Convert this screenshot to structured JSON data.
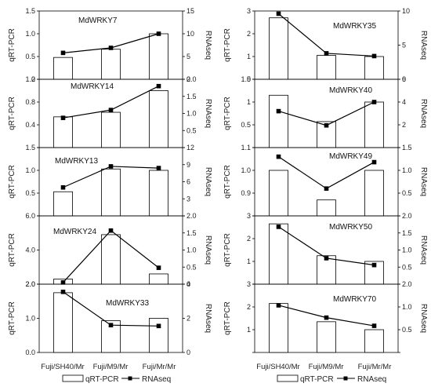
{
  "legend": {
    "bar_label": "qRT-PCR",
    "line_label": "RNAseq"
  },
  "colors": {
    "bar_fill": "#ffffff",
    "bar_stroke": "#000000",
    "line": "#000000",
    "marker": "#000000"
  },
  "chart_data": [
    {
      "type": "bar",
      "title": "MdWRKY7",
      "categories": [
        "Fuji/SH40/Mr",
        "Fuji/M9/Mr",
        "Fuji/Mr/Mr"
      ],
      "ylabel": "qRT-PCR",
      "y2label": "RNAseq",
      "ylim": [
        0,
        1.5
      ],
      "yticks": [
        "0",
        "0.5",
        "1.0",
        "1.5"
      ],
      "y2lim": [
        0,
        15
      ],
      "y2ticks": [
        "0",
        "5",
        "10",
        "15"
      ],
      "series": [
        {
          "name": "qRT-PCR",
          "axis": "left",
          "values": [
            0.48,
            0.66,
            1.0
          ]
        },
        {
          "name": "RNAseq",
          "axis": "right",
          "values": [
            5.8,
            6.9,
            10.0
          ]
        }
      ]
    },
    {
      "type": "bar",
      "title": "MdWRKY14",
      "categories": [
        "Fuji/SH40/Mr",
        "Fuji/M9/Mr",
        "Fuji/Mr/Mr"
      ],
      "ylabel": "qRT-PCR",
      "y2label": "RNAseq",
      "ylim": [
        0,
        1.2
      ],
      "yticks": [
        "",
        "0.4",
        "0.8",
        "1.2"
      ],
      "y2lim": [
        0,
        2.0
      ],
      "y2ticks": [
        "",
        "0.5",
        "1.0",
        "1.5",
        "2.0"
      ],
      "series": [
        {
          "name": "qRT-PCR",
          "axis": "left",
          "values": [
            0.54,
            0.62,
            1.0
          ]
        },
        {
          "name": "RNAseq",
          "axis": "right",
          "values": [
            0.87,
            1.1,
            1.8
          ]
        }
      ]
    },
    {
      "type": "bar",
      "title": "MdWRKY13",
      "categories": [
        "Fuji/SH40/Mr",
        "Fuji/M9/Mr",
        "Fuji/Mr/Mr"
      ],
      "ylabel": "qRT-PCR",
      "y2label": "RNAseq",
      "ylim": [
        0,
        1.5
      ],
      "yticks": [
        "",
        "0.5",
        "1.0",
        "1.5"
      ],
      "y2lim": [
        0,
        12
      ],
      "y2ticks": [
        "",
        "3",
        "6",
        "9",
        "12"
      ],
      "series": [
        {
          "name": "qRT-PCR",
          "axis": "left",
          "values": [
            0.53,
            1.03,
            1.0
          ]
        },
        {
          "name": "RNAseq",
          "axis": "right",
          "values": [
            5.0,
            8.7,
            8.4
          ]
        }
      ]
    },
    {
      "type": "bar",
      "title": "MdWRKY24",
      "categories": [
        "Fuji/SH40/Mr",
        "Fuji/M9/Mr",
        "Fuji/Mr/Mr"
      ],
      "ylabel": "qRT-PCR",
      "y2label": "RNAseq",
      "ylim": [
        2.0,
        6.0
      ],
      "yticks": [
        "2.0",
        "4.0",
        "6.0"
      ],
      "y2lim": [
        0,
        2.0
      ],
      "y2ticks": [
        "0",
        "0.5",
        "1.0",
        "1.5",
        "2.0"
      ],
      "series": [
        {
          "name": "qRT-PCR",
          "axis": "left",
          "values": [
            2.3,
            4.9,
            2.6
          ]
        },
        {
          "name": "RNAseq",
          "axis": "right",
          "values": [
            0.05,
            1.57,
            0.48
          ]
        }
      ]
    },
    {
      "type": "bar",
      "title": "MdWRKY33",
      "categories": [
        "Fuji/SH40/Mr",
        "Fuji/M9/Mr",
        "Fuji/Mr/Mr"
      ],
      "ylabel": "qRT-PCR",
      "y2label": "RNAseq",
      "ylim": [
        0,
        2.0
      ],
      "yticks": [
        "0.0",
        "1.0",
        "2.0"
      ],
      "y2lim": [
        0,
        4
      ],
      "y2ticks": [
        "0",
        "2",
        "4"
      ],
      "series": [
        {
          "name": "qRT-PCR",
          "axis": "left",
          "values": [
            1.75,
            0.93,
            1.0
          ]
        },
        {
          "name": "RNAseq",
          "axis": "right",
          "values": [
            3.55,
            1.6,
            1.55
          ]
        }
      ]
    },
    {
      "type": "bar",
      "title": "MdWRKY35",
      "categories": [
        "Fuji/SH40/Mr",
        "Fuji/M9/Mr",
        "Fuji/Mr/Mr"
      ],
      "ylabel": "qRT-PCR",
      "y2label": "RNAseq",
      "ylim": [
        0,
        3
      ],
      "yticks": [
        "0",
        "1",
        "2",
        "3"
      ],
      "y2lim": [
        0,
        10
      ],
      "y2ticks": [
        "0",
        "5",
        "10"
      ],
      "series": [
        {
          "name": "qRT-PCR",
          "axis": "left",
          "values": [
            2.7,
            1.05,
            1.0
          ]
        },
        {
          "name": "RNAseq",
          "axis": "right",
          "values": [
            9.6,
            3.8,
            3.4
          ]
        }
      ]
    },
    {
      "type": "bar",
      "title": "MdWRKY40",
      "categories": [
        "Fuji/SH40/Mr",
        "Fuji/M9/Mr",
        "Fuji/Mr/Mr"
      ],
      "ylabel": "qRT-PCR",
      "y2label": "RNAseq",
      "ylim": [
        0,
        1.5
      ],
      "yticks": [
        "",
        "0.5",
        "1",
        "1.5"
      ],
      "y2lim": [
        0,
        6
      ],
      "y2ticks": [
        "",
        "2",
        "4",
        "6"
      ],
      "series": [
        {
          "name": "qRT-PCR",
          "axis": "left",
          "values": [
            1.15,
            0.57,
            1.0
          ]
        },
        {
          "name": "RNAseq",
          "axis": "right",
          "values": [
            3.2,
            1.95,
            4.0
          ]
        }
      ]
    },
    {
      "type": "bar",
      "title": "MdWRKY49",
      "categories": [
        "Fuji/SH40/Mr",
        "Fuji/M9/Mr",
        "Fuji/Mr/Mr"
      ],
      "ylabel": "qRT-PCR",
      "y2label": "RNAseq",
      "ylim": [
        0.8,
        1.1
      ],
      "yticks": [
        "",
        "0.9",
        "1.0",
        "1.1"
      ],
      "y2lim": [
        0,
        1.5
      ],
      "y2ticks": [
        "",
        "0.5",
        "1.0",
        "1.5"
      ],
      "series": [
        {
          "name": "qRT-PCR",
          "axis": "left",
          "values": [
            1.0,
            0.87,
            1.0
          ]
        },
        {
          "name": "RNAseq",
          "axis": "right",
          "values": [
            1.3,
            0.6,
            1.18
          ]
        }
      ]
    },
    {
      "type": "bar",
      "title": "MdWRKY50",
      "categories": [
        "Fuji/SH40/Mr",
        "Fuji/M9/Mr",
        "Fuji/Mr/Mr"
      ],
      "ylabel": "qRT-PCR",
      "y2label": "RNAseq",
      "ylim": [
        0,
        3
      ],
      "yticks": [
        "",
        "1",
        "2",
        "3"
      ],
      "y2lim": [
        0,
        2.0
      ],
      "y2ticks": [
        "",
        "0.5",
        "1.0",
        "1.5",
        "2.0"
      ],
      "series": [
        {
          "name": "qRT-PCR",
          "axis": "left",
          "values": [
            2.65,
            1.25,
            1.0
          ]
        },
        {
          "name": "RNAseq",
          "axis": "right",
          "values": [
            1.68,
            0.76,
            0.56
          ]
        }
      ]
    },
    {
      "type": "bar",
      "title": "MdWRKY70",
      "categories": [
        "Fuji/SH40/Mr",
        "Fuji/M9/Mr",
        "Fuji/Mr/Mr"
      ],
      "ylabel": "qRT-PCR",
      "y2label": "RNAseq",
      "ylim": [
        0,
        3
      ],
      "yticks": [
        "",
        "1",
        "2",
        "3"
      ],
      "y2lim": [
        0,
        2.0
      ],
      "y2ticks": [
        "",
        "0.5",
        "1.0",
        "2.0"
      ],
      "series": [
        {
          "name": "qRT-PCR",
          "axis": "left",
          "values": [
            2.15,
            1.35,
            1.0
          ]
        },
        {
          "name": "RNAseq",
          "axis": "right",
          "values": [
            1.38,
            1.02,
            0.78
          ]
        }
      ]
    }
  ]
}
